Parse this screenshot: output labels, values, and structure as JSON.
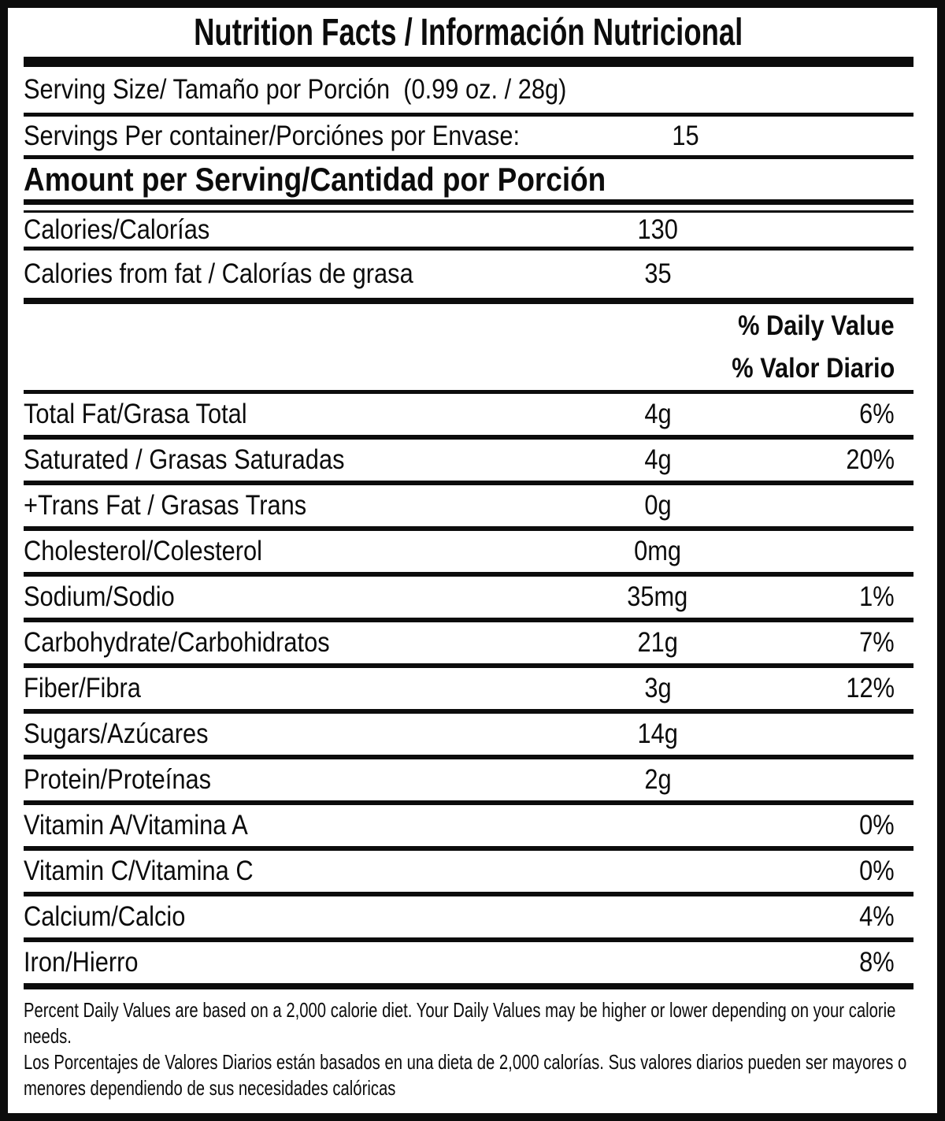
{
  "colors": {
    "ink": "#0c0c0c",
    "background": "#ffffff"
  },
  "label": {
    "title": "Nutrition Facts / Información Nutricional",
    "serving_size": "Serving Size/ Tamaño por Porción  (0.99 oz. / 28g)",
    "servings_per_container": {
      "label": "Servings Per container/Porciónes por Envase:",
      "value": "15"
    },
    "amount_per_serving_header": "Amount per Serving/Cantidad por Porción",
    "calories": {
      "label": "Calories/Calorías",
      "value": "130"
    },
    "calories_from_fat": {
      "label": "Calories from fat / Calorías de grasa",
      "value": "35"
    },
    "daily_value_header_en": "% Daily Value",
    "daily_value_header_es": "% Valor Diario",
    "nutrients": [
      {
        "label": "Total Fat/Grasa Total",
        "amount": "4g",
        "dv": "6%"
      },
      {
        "label": "Saturated / Grasas Saturadas",
        "amount": "4g",
        "dv": "20%"
      },
      {
        "label": "+Trans Fat / Grasas Trans",
        "amount": "0g",
        "dv": ""
      },
      {
        "label": "Cholesterol/Colesterol",
        "amount": "0mg",
        "dv": ""
      },
      {
        "label": "Sodium/Sodio",
        "amount": "35mg",
        "dv": "1%"
      },
      {
        "label": "Carbohydrate/Carbohidratos",
        "amount": "21g",
        "dv": "7%"
      },
      {
        "label": "Fiber/Fibra",
        "amount": "3g",
        "dv": "12%"
      },
      {
        "label": "Sugars/Azúcares",
        "amount": "14g",
        "dv": ""
      },
      {
        "label": "Protein/Proteínas",
        "amount": "2g",
        "dv": ""
      },
      {
        "label": "Vitamin A/Vitamina A",
        "amount": "",
        "dv": "0%"
      },
      {
        "label": "Vitamin C/Vitamina C",
        "amount": "",
        "dv": "0%"
      },
      {
        "label": "Calcium/Calcio",
        "amount": "",
        "dv": "4%"
      },
      {
        "label": "Iron/Hierro",
        "amount": "",
        "dv": "8%"
      }
    ],
    "footnote_en": "Percent Daily Values are based on a 2,000 calorie diet. Your Daily Values may be higher or lower depending on your calorie needs.",
    "footnote_es": "Los Porcentajes de Valores Diarios están basados en una dieta de 2,000 calorías. Sus valores diarios pueden ser mayores o menores dependiendo de sus necesidades calóricas"
  }
}
